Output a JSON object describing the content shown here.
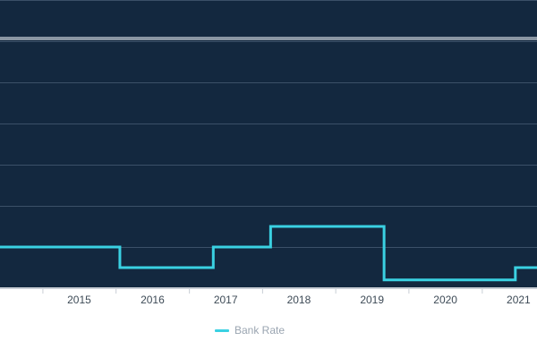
{
  "chart_data": {
    "type": "line",
    "title": "",
    "xlabel": "",
    "ylabel": "",
    "x_ticks": [
      "2015",
      "2016",
      "2017",
      "2018",
      "2019",
      "2020",
      "2021"
    ],
    "xlim": [
      "2014-06-01",
      "2021-10-01"
    ],
    "ylim": [
      0,
      3.5
    ],
    "grid": true,
    "legend_position": "bottom",
    "background_color": "#13283f",
    "series": [
      {
        "name": "Bank Rate",
        "color": "#3ad1e2",
        "step": true,
        "points": [
          {
            "x": "2014-06-01",
            "y": 0.5
          },
          {
            "x": "2016-01-20",
            "y": 0.5
          },
          {
            "x": "2016-01-20",
            "y": 0.25
          },
          {
            "x": "2017-04-30",
            "y": 0.25
          },
          {
            "x": "2017-04-30",
            "y": 0.5
          },
          {
            "x": "2018-02-10",
            "y": 0.5
          },
          {
            "x": "2018-02-10",
            "y": 0.75
          },
          {
            "x": "2019-08-30",
            "y": 0.75
          },
          {
            "x": "2019-08-30",
            "y": 0.1
          },
          {
            "x": "2021-06-15",
            "y": 0.1
          },
          {
            "x": "2021-06-15",
            "y": 0.25
          },
          {
            "x": "2021-10-01",
            "y": 0.25
          }
        ]
      }
    ]
  }
}
